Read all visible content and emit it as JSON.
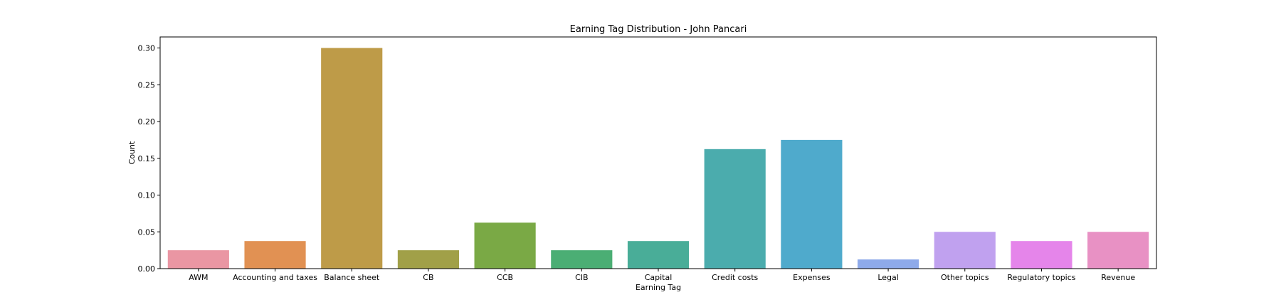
{
  "chart_data": {
    "type": "bar",
    "title": "Earning Tag Distribution - John Pancari",
    "xlabel": "Earning Tag",
    "ylabel": "Count",
    "ylim": [
      0,
      0.315
    ],
    "yticks": [
      "0.00",
      "0.05",
      "0.10",
      "0.15",
      "0.20",
      "0.25",
      "0.30"
    ],
    "grid": false,
    "categories": [
      "AWM",
      "Accounting and taxes",
      "Balance sheet",
      "CB",
      "CCB",
      "CIB",
      "Capital",
      "Credit costs",
      "Expenses",
      "Legal",
      "Other topics",
      "Regulatory topics",
      "Revenue"
    ],
    "values": [
      0.025,
      0.0375,
      0.3,
      0.025,
      0.0625,
      0.025,
      0.0375,
      0.1625,
      0.175,
      0.0125,
      0.05,
      0.0375,
      0.05
    ],
    "colors": [
      "#ea96a3",
      "#e19153",
      "#be9b48",
      "#a1a048",
      "#7aa945",
      "#4bae74",
      "#49ad98",
      "#4bacad",
      "#4faacc",
      "#8eaaea",
      "#c0a1ef",
      "#e585ea",
      "#e891c4"
    ]
  }
}
